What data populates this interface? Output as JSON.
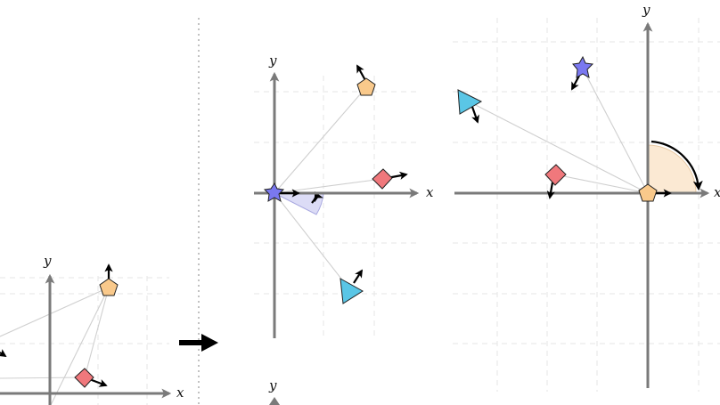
{
  "axis_labels": {
    "x": "x",
    "y": "y"
  },
  "colors": {
    "pentagon": "#f9c98b",
    "diamond": "#f0787c",
    "star": "#7a78f0",
    "triangle": "#5ac6e6",
    "angle_wedge_rotate": "#dcdcf6",
    "angle_wedge_frame3": "#fbe9d3",
    "axis": "#7a7a7a",
    "grid": "#e6e6e6"
  },
  "shapes": [
    "pentagon",
    "diamond",
    "star",
    "triangle"
  ],
  "panels": [
    "frame-previous",
    "frame-rotated-about-star",
    "frame-centered-on-pentagon",
    "frame-next"
  ],
  "transition_icon": "right-arrow-icon"
}
